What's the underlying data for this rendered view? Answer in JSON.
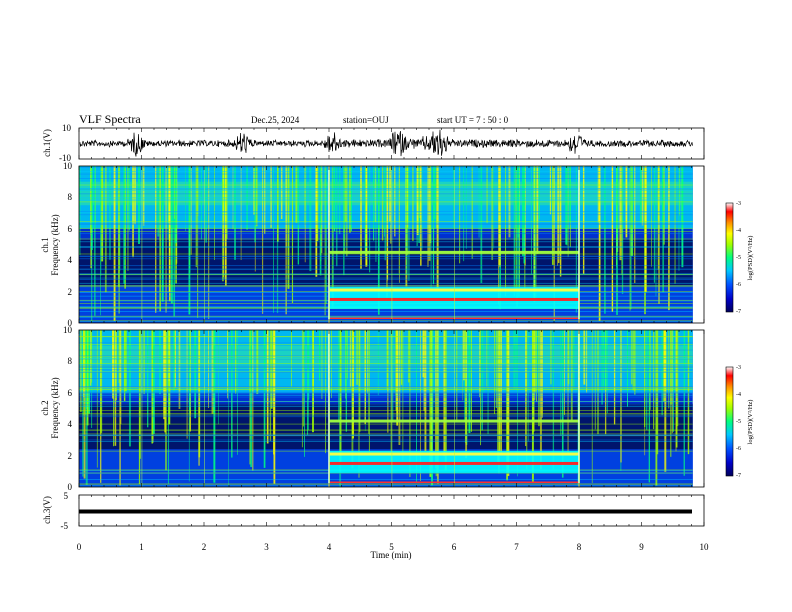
{
  "header": {
    "title": "VLF Spectra",
    "date": "Dec.25, 2024",
    "station": "station=OUJ",
    "start": "start  UT =  7 : 50 : 0"
  },
  "chart_data": [
    {
      "type": "line",
      "name": "ch1-waveform",
      "ylabel": "ch.1(V)",
      "ylim": [
        -10,
        10
      ],
      "yticks": [
        "10",
        "-10"
      ],
      "xlim": [
        0,
        10
      ],
      "note_bursts_min": [
        0.92,
        2.62,
        4.05,
        5.1,
        5.75,
        7.95
      ]
    },
    {
      "type": "heatmap",
      "name": "ch1-spectrogram",
      "ylabel_line1": "ch.1",
      "ylabel_line2": "Frequency  (kHz)",
      "ylim": [
        0,
        10
      ],
      "yticks": [
        "0",
        "2",
        "4",
        "6",
        "8",
        "10"
      ],
      "xlim": [
        0,
        10
      ],
      "data_end_min": 9.82,
      "event_interval_min": [
        4.0,
        8.0
      ],
      "event_bands_khz": [
        1.5,
        2.1,
        4.5
      ],
      "colorbar": {
        "ticks": [
          "-3",
          "-4",
          "-5",
          "-6",
          "-7"
        ],
        "range": [
          -7,
          -3
        ],
        "label": "log(PSD)(V²/Hz)"
      }
    },
    {
      "type": "heatmap",
      "name": "ch2-spectrogram",
      "ylabel_line1": "ch.2",
      "ylabel_line2": "Frequency  (kHz)",
      "ylim": [
        0,
        10
      ],
      "yticks": [
        "0",
        "2",
        "4",
        "6",
        "8",
        "10"
      ],
      "xlim": [
        0,
        10
      ],
      "data_end_min": 9.82,
      "event_interval_min": [
        4.0,
        8.0
      ],
      "event_bands_khz": [
        1.5,
        2.1,
        4.2
      ],
      "colorbar": {
        "ticks": [
          "-3",
          "-4",
          "-5",
          "-6",
          "-7"
        ],
        "range": [
          -7,
          -3
        ],
        "label": "log(PSD)(V²/Hz)"
      }
    },
    {
      "type": "line",
      "name": "ch3-waveform",
      "ylabel": "ch.3(V)",
      "ylim": [
        -5,
        5
      ],
      "yticks": [
        "5",
        "-5"
      ],
      "xlim": [
        0,
        10
      ],
      "constant_value": 0
    }
  ],
  "xaxis": {
    "ticks": [
      "0",
      "1",
      "2",
      "3",
      "4",
      "5",
      "6",
      "7",
      "8",
      "9",
      "10"
    ],
    "label": "Time  (min)"
  },
  "colors": {
    "colormap": [
      "#00005a",
      "#0000c8",
      "#0050ff",
      "#00c8ff",
      "#00ff80",
      "#a0ff00",
      "#ffff00",
      "#ff9000",
      "#ff0000",
      "#ffffff"
    ]
  }
}
